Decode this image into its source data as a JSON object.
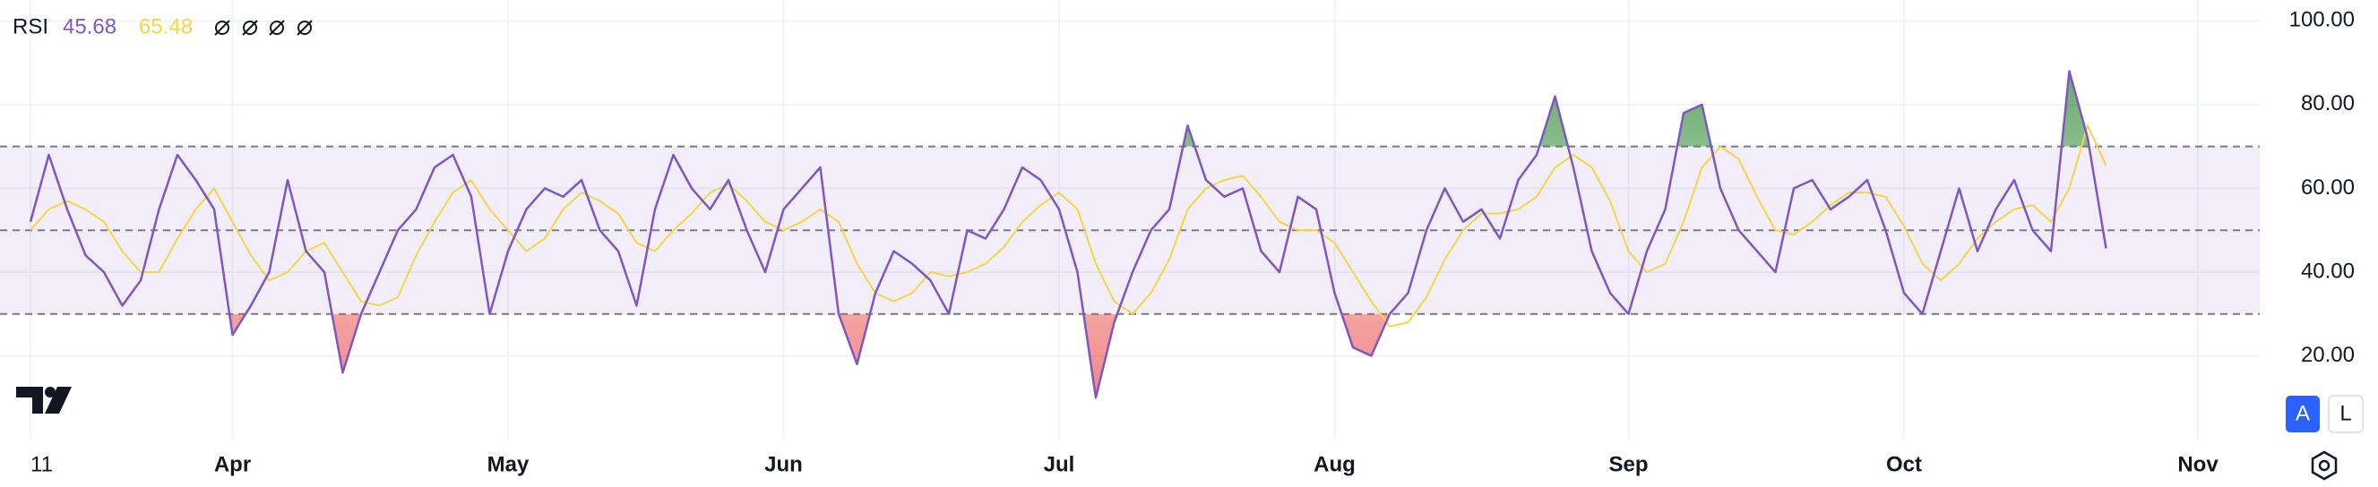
{
  "chart_data": {
    "type": "line",
    "categories": [
      "11",
      null,
      null,
      null,
      null,
      null,
      null,
      null,
      null,
      null,
      null,
      "Apr",
      null,
      null,
      null,
      null,
      null,
      null,
      null,
      null,
      null,
      null,
      null,
      null,
      null,
      null,
      "May",
      null,
      null,
      null,
      null,
      null,
      null,
      null,
      null,
      null,
      null,
      null,
      null,
      null,
      null,
      "Jun",
      null,
      null,
      null,
      null,
      null,
      null,
      null,
      null,
      null,
      null,
      null,
      null,
      null,
      null,
      "Jul",
      null,
      null,
      null,
      null,
      null,
      null,
      null,
      null,
      null,
      null,
      null,
      null,
      null,
      null,
      "Aug",
      null,
      null,
      null,
      null,
      null,
      null,
      null,
      null,
      null,
      null,
      null,
      null,
      null,
      null,
      null,
      "Sep",
      null,
      null,
      null,
      null,
      null,
      null,
      null,
      null,
      null,
      null,
      null,
      null,
      null,
      null,
      "Oct",
      null,
      null,
      null,
      null,
      null,
      null,
      null,
      null,
      null,
      null,
      null,
      null,
      null,
      null,
      null,
      "Nov"
    ],
    "series": [
      {
        "name": "RSI",
        "color": "#7e57c2",
        "current_value": 45.68,
        "values": [
          52,
          68,
          55,
          44,
          40,
          32,
          38,
          55,
          68,
          62,
          55,
          25,
          32,
          40,
          62,
          45,
          40,
          16,
          30,
          40,
          50,
          55,
          65,
          68,
          58,
          30,
          45,
          55,
          60,
          58,
          62,
          50,
          45,
          32,
          55,
          68,
          60,
          55,
          62,
          50,
          40,
          55,
          60,
          65,
          30,
          18,
          35,
          45,
          42,
          38,
          30,
          50,
          48,
          55,
          65,
          62,
          55,
          40,
          10,
          28,
          40,
          50,
          55,
          75,
          62,
          58,
          60,
          45,
          40,
          58,
          55,
          35,
          22,
          20,
          30,
          35,
          50,
          60,
          52,
          55,
          48,
          62,
          68,
          82,
          65,
          45,
          35,
          30,
          45,
          55,
          78,
          80,
          60,
          50,
          45,
          40,
          60,
          62,
          55,
          58,
          62,
          50,
          35,
          30,
          45,
          60,
          45,
          55,
          62,
          50,
          45,
          88,
          72,
          45.68,
          null,
          null,
          null,
          null,
          null
        ]
      },
      {
        "color": "#f5d547",
        "current_value": 65.48,
        "values": [
          50,
          55,
          57,
          55,
          52,
          45,
          40,
          40,
          48,
          55,
          60,
          52,
          44,
          38,
          40,
          45,
          47,
          40,
          33,
          32,
          34,
          44,
          52,
          59,
          62,
          55,
          50,
          45,
          48,
          55,
          59,
          57,
          54,
          47,
          45,
          50,
          54,
          59,
          61,
          57,
          52,
          50,
          52,
          55,
          52,
          42,
          35,
          33,
          35,
          40,
          39,
          40,
          42,
          46,
          52,
          56,
          59,
          55,
          42,
          33,
          30,
          35,
          43,
          55,
          60,
          62,
          63,
          58,
          52,
          50,
          50,
          47,
          40,
          33,
          27,
          28,
          34,
          43,
          50,
          54,
          54,
          55,
          58,
          65,
          68,
          65,
          57,
          45,
          40,
          42,
          52,
          65,
          70,
          67,
          58,
          50,
          49,
          52,
          56,
          59,
          59,
          58,
          51,
          42,
          38,
          42,
          48,
          52,
          55,
          56,
          52,
          60,
          75,
          65.48,
          null,
          null,
          null,
          null,
          null
        ]
      }
    ],
    "ylim": [
      0,
      105
    ],
    "yticks": [
      {
        "value": 20,
        "label": "20.00"
      },
      {
        "value": 40,
        "label": "40.00"
      },
      {
        "value": 60,
        "label": "60.00"
      },
      {
        "value": 80,
        "label": "80.00"
      },
      {
        "value": 100,
        "label": "100.00"
      }
    ],
    "levels": [
      70,
      50,
      30
    ],
    "grid": true
  },
  "controls": {
    "auto": "A",
    "log": "L"
  }
}
